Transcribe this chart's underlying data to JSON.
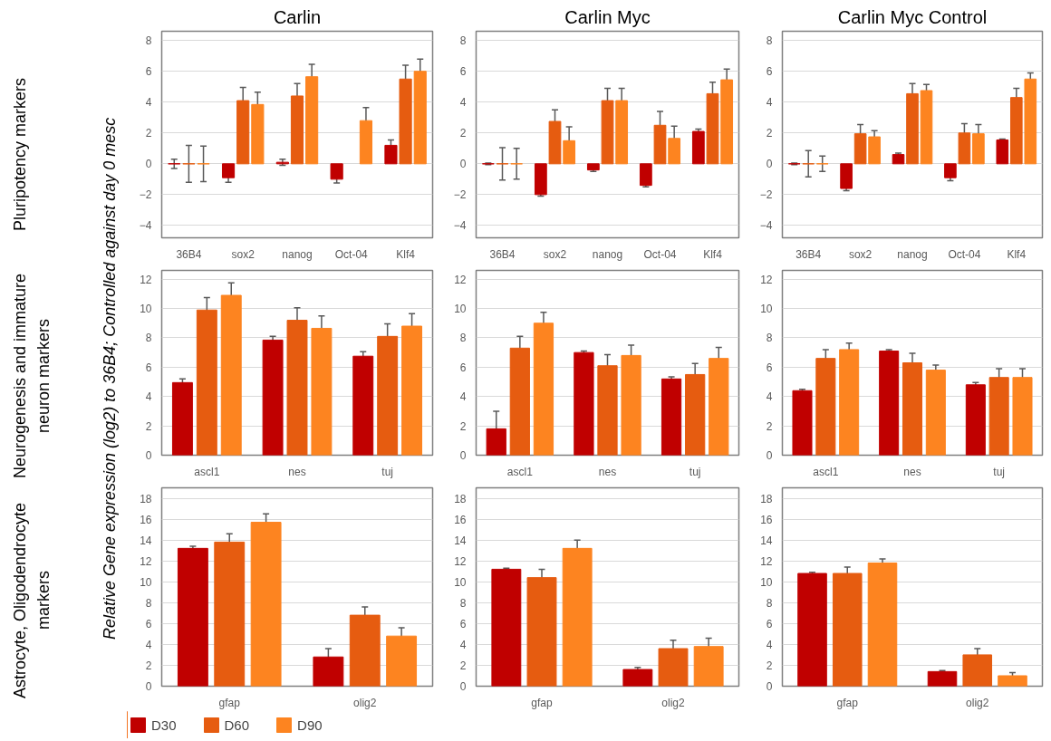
{
  "chart_data": [
    {
      "type": "bar",
      "title": "Carlin",
      "ylabel": "Pluripotency markers",
      "categories": [
        "36B4",
        "sox2",
        "nanog",
        "Oct-04",
        "Klf4"
      ],
      "ylim": [
        -4.8,
        8.6
      ],
      "yticks": [
        -4,
        -2,
        0,
        2,
        4,
        6,
        8
      ],
      "grid": "y",
      "legend": false,
      "series": [
        {
          "color": "#c00000",
          "values": [
            0.0,
            -0.9,
            0.1,
            -1.0,
            1.2
          ],
          "errors": [
            0.3,
            0.3,
            0.2,
            0.25,
            0.35
          ]
        },
        {
          "color": "#e65c10",
          "values": [
            0.0,
            4.1,
            4.4,
            null,
            5.5
          ],
          "errors": [
            1.2,
            0.85,
            0.8,
            null,
            0.9
          ]
        },
        {
          "color": "#fd8420",
          "values": [
            0.0,
            3.85,
            5.65,
            2.8,
            6.0
          ],
          "errors": [
            1.15,
            0.8,
            0.8,
            0.85,
            0.8
          ]
        }
      ]
    },
    {
      "type": "bar",
      "title": "Carlin Myc",
      "categories": [
        "36B4",
        "sox2",
        "nanog",
        "Oct-04",
        "Klf4"
      ],
      "ylim": [
        -4.8,
        8.6
      ],
      "yticks": [
        -4,
        -2,
        0,
        2,
        4,
        6,
        8
      ],
      "grid": "y",
      "legend": false,
      "series": [
        {
          "color": "#c00000",
          "values": [
            0.0,
            -2.0,
            -0.4,
            -1.4,
            2.1
          ],
          "errors": [
            0.05,
            0.1,
            0.1,
            0.1,
            0.15
          ]
        },
        {
          "color": "#e65c10",
          "values": [
            0.0,
            2.75,
            4.1,
            2.5,
            4.55
          ],
          "errors": [
            1.05,
            0.75,
            0.8,
            0.9,
            0.75
          ]
        },
        {
          "color": "#fd8420",
          "values": [
            0.0,
            1.5,
            4.1,
            1.65,
            5.45
          ],
          "errors": [
            1.0,
            0.9,
            0.8,
            0.8,
            0.7
          ]
        }
      ]
    },
    {
      "type": "bar",
      "title": "Carlin Myc Control",
      "categories": [
        "36B4",
        "sox2",
        "nanog",
        "Oct-04",
        "Klf4"
      ],
      "ylim": [
        -4.8,
        8.6
      ],
      "yticks": [
        -4,
        -2,
        0,
        2,
        4,
        6,
        8
      ],
      "grid": "y",
      "legend": false,
      "series": [
        {
          "color": "#c00000",
          "values": [
            0.0,
            -1.6,
            0.6,
            -0.9,
            1.55
          ],
          "errors": [
            0.05,
            0.15,
            0.1,
            0.2,
            0.05
          ]
        },
        {
          "color": "#e65c10",
          "values": [
            0.0,
            1.95,
            4.55,
            2.0,
            4.3
          ],
          "errors": [
            0.85,
            0.6,
            0.65,
            0.6,
            0.6
          ]
        },
        {
          "color": "#fd8420",
          "values": [
            0.0,
            1.75,
            4.75,
            1.95,
            5.5
          ],
          "errors": [
            0.5,
            0.4,
            0.4,
            0.6,
            0.4
          ]
        }
      ]
    },
    {
      "type": "bar",
      "ylabel": "Neurogenesis and immature neuron markers",
      "annotations": [
        "Relative Gene expression (log2) to 36B4; Controlled against day 0 mesc"
      ],
      "categories": [
        "ascl1",
        "nes",
        "tuj"
      ],
      "ylim": [
        0,
        12.6
      ],
      "yticks": [
        0,
        2,
        4,
        6,
        8,
        10,
        12
      ],
      "grid": "y",
      "legend": false,
      "series": [
        {
          "color": "#c00000",
          "values": [
            4.95,
            7.85,
            6.75
          ],
          "errors": [
            0.25,
            0.25,
            0.3
          ]
        },
        {
          "color": "#e65c10",
          "values": [
            9.9,
            9.2,
            8.1
          ],
          "errors": [
            0.85,
            0.85,
            0.85
          ]
        },
        {
          "color": "#fd8420",
          "values": [
            10.9,
            8.65,
            8.8
          ],
          "errors": [
            0.85,
            0.85,
            0.85
          ]
        }
      ]
    },
    {
      "type": "bar",
      "categories": [
        "ascl1",
        "nes",
        "tuj"
      ],
      "ylim": [
        0,
        12.6
      ],
      "yticks": [
        0,
        2,
        4,
        6,
        8,
        10,
        12
      ],
      "grid": "y",
      "legend": false,
      "series": [
        {
          "color": "#c00000",
          "values": [
            1.8,
            7.0,
            5.2
          ],
          "errors": [
            1.2,
            0.1,
            0.15
          ]
        },
        {
          "color": "#e65c10",
          "values": [
            7.3,
            6.1,
            5.5
          ],
          "errors": [
            0.8,
            0.75,
            0.75
          ]
        },
        {
          "color": "#fd8420",
          "values": [
            9.0,
            6.8,
            6.6
          ],
          "errors": [
            0.75,
            0.7,
            0.75
          ]
        }
      ]
    },
    {
      "type": "bar",
      "categories": [
        "ascl1",
        "nes",
        "tuj"
      ],
      "ylim": [
        0,
        12.6
      ],
      "yticks": [
        0,
        2,
        4,
        6,
        8,
        10,
        12
      ],
      "grid": "y",
      "legend": false,
      "series": [
        {
          "color": "#c00000",
          "values": [
            4.4,
            7.1,
            4.8
          ],
          "errors": [
            0.1,
            0.1,
            0.15
          ]
        },
        {
          "color": "#e65c10",
          "values": [
            6.6,
            6.3,
            5.3
          ],
          "errors": [
            0.6,
            0.65,
            0.6
          ]
        },
        {
          "color": "#fd8420",
          "values": [
            7.2,
            5.8,
            5.3
          ],
          "errors": [
            0.45,
            0.35,
            0.6
          ]
        }
      ]
    },
    {
      "type": "bar",
      "ylabel": "Astrocyte, Oligodendrocyte markers",
      "categories": [
        "gfap",
        "olig2"
      ],
      "ylim": [
        0,
        19
      ],
      "yticks": [
        0,
        2,
        4,
        6,
        8,
        10,
        12,
        14,
        16,
        18
      ],
      "grid": "y",
      "legend": "bottom",
      "series": [
        {
          "name": "D30",
          "color": "#c00000",
          "values": [
            13.2,
            2.8
          ],
          "errors": [
            0.2,
            0.8
          ]
        },
        {
          "name": "D60",
          "color": "#e65c10",
          "values": [
            13.8,
            6.8
          ],
          "errors": [
            0.8,
            0.8
          ]
        },
        {
          "name": "D90",
          "color": "#fd8420",
          "values": [
            15.7,
            4.8
          ],
          "errors": [
            0.8,
            0.8
          ]
        }
      ]
    },
    {
      "type": "bar",
      "categories": [
        "gfap",
        "olig2"
      ],
      "ylim": [
        0,
        19
      ],
      "yticks": [
        0,
        2,
        4,
        6,
        8,
        10,
        12,
        14,
        16,
        18
      ],
      "grid": "y",
      "legend": false,
      "series": [
        {
          "color": "#c00000",
          "values": [
            11.2,
            1.6
          ],
          "errors": [
            0.1,
            0.2
          ]
        },
        {
          "color": "#e65c10",
          "values": [
            10.4,
            3.6
          ],
          "errors": [
            0.8,
            0.8
          ]
        },
        {
          "color": "#fd8420",
          "values": [
            13.2,
            3.8
          ],
          "errors": [
            0.8,
            0.8
          ]
        }
      ]
    },
    {
      "type": "bar",
      "categories": [
        "gfap",
        "olig2"
      ],
      "ylim": [
        0,
        19
      ],
      "yticks": [
        0,
        2,
        4,
        6,
        8,
        10,
        12,
        14,
        16,
        18
      ],
      "grid": "y",
      "legend": false,
      "series": [
        {
          "color": "#c00000",
          "values": [
            10.8,
            1.4
          ],
          "errors": [
            0.1,
            0.1
          ]
        },
        {
          "color": "#e65c10",
          "values": [
            10.8,
            3.0
          ],
          "errors": [
            0.6,
            0.6
          ]
        },
        {
          "color": "#fd8420",
          "values": [
            11.8,
            1.0
          ],
          "errors": [
            0.4,
            0.3
          ]
        }
      ]
    }
  ]
}
